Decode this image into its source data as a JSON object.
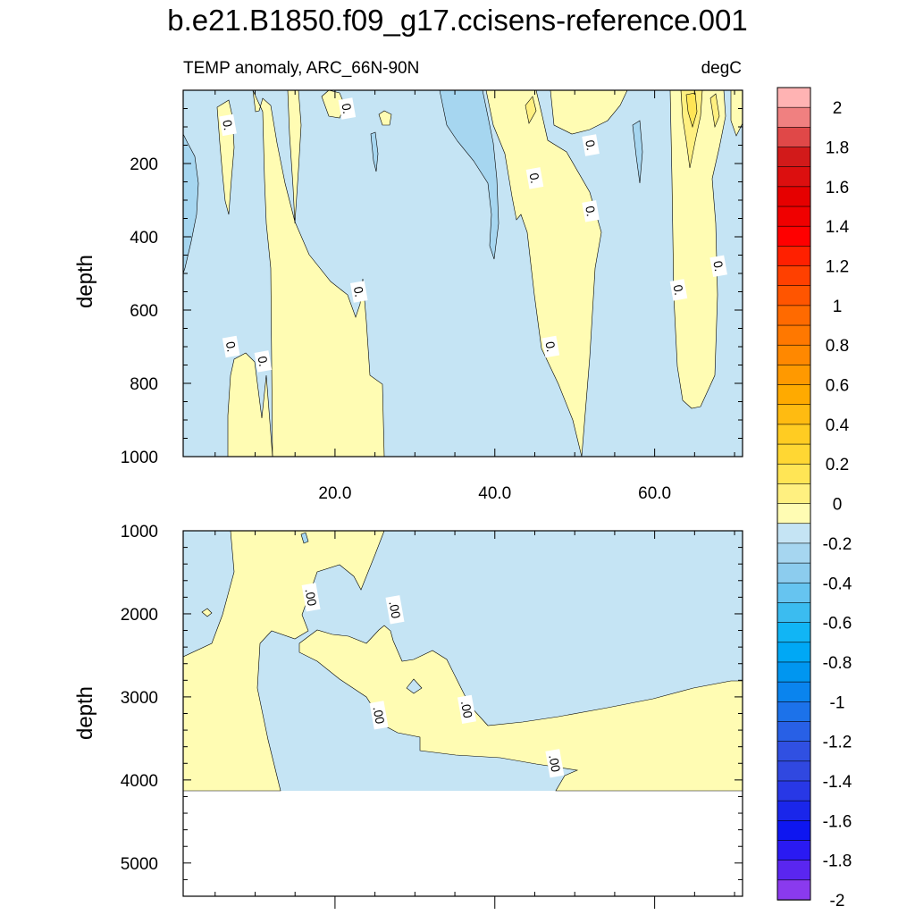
{
  "title": "b.e21.B1850.f09_g17.ccisens-reference.001",
  "chart_data": [
    {
      "type": "heatmap",
      "panel": "upper",
      "subtitle_left": "TEMP anomaly, ARC_66N-90N",
      "subtitle_right": "degC",
      "ylabel": "depth",
      "y_reversed": true,
      "xlim": [
        1,
        71
      ],
      "ylim": [
        0,
        1000
      ],
      "x_ticks": [
        20,
        40,
        60
      ],
      "x_tick_labels": [
        "20.0",
        "40.0",
        "60.0"
      ],
      "y_ticks": [
        200,
        400,
        600,
        800,
        1000
      ],
      "y_tick_labels": [
        "200",
        "400",
        "600",
        "800",
        "1000"
      ],
      "contour_labels": [
        {
          "text": "0.",
          "x": 6.6,
          "y": 95
        },
        {
          "text": "0.",
          "x": 21.5,
          "y": 50
        },
        {
          "text": "0.",
          "x": 23.0,
          "y": 550
        },
        {
          "text": "0.",
          "x": 7.0,
          "y": 700
        },
        {
          "text": "0.",
          "x": 11.0,
          "y": 740
        },
        {
          "text": "0.",
          "x": 45.0,
          "y": 240
        },
        {
          "text": "0.",
          "x": 52.0,
          "y": 330
        },
        {
          "text": "0.",
          "x": 52.0,
          "y": 150
        },
        {
          "text": "0.",
          "x": 47.0,
          "y": 700
        },
        {
          "text": "0.",
          "x": 63.0,
          "y": 545
        },
        {
          "text": "0.",
          "x": 68.0,
          "y": 480
        }
      ]
    },
    {
      "type": "heatmap",
      "panel": "lower",
      "ylabel": "depth",
      "y_reversed": true,
      "xlim": [
        1,
        71
      ],
      "ylim": [
        1000,
        5400
      ],
      "y_ticks": [
        1000,
        2000,
        3000,
        4000,
        5000
      ],
      "y_tick_labels": [
        "1000",
        "2000",
        "3000",
        "4000",
        "5000"
      ],
      "contour_labels": [
        {
          "text": ".00",
          "x": 17.0,
          "y": 1800
        },
        {
          "text": ".00",
          "x": 27.5,
          "y": 1950
        },
        {
          "text": ".00",
          "x": 25.5,
          "y": 3220
        },
        {
          "text": ".00",
          "x": 36.5,
          "y": 3150
        },
        {
          "text": ".00",
          "x": 47.5,
          "y": 3800
        }
      ]
    }
  ],
  "colorbar": {
    "labels": [
      "2",
      "1.8",
      "1.6",
      "1.4",
      "1.2",
      "1",
      "0.8",
      "0.6",
      "0.4",
      "0.2",
      "0",
      "-0.2",
      "-0.4",
      "-0.6",
      "-0.8",
      "-1",
      "-1.2",
      "-1.4",
      "-1.6",
      "-1.8",
      "-2"
    ],
    "colors": [
      "#FFB3B3",
      "#F08080",
      "#E04848",
      "#D21A1A",
      "#DC0F0F",
      "#E60000",
      "#F00000",
      "#FF0000",
      "#FF2000",
      "#FF4000",
      "#FF5500",
      "#FF6A00",
      "#FF7800",
      "#FF8800",
      "#FF9900",
      "#FFAA00",
      "#FFBB11",
      "#FFCC22",
      "#FFD733",
      "#FFE555",
      "#FFF080",
      "#FFFCB3",
      "#C5E4F4",
      "#A6D6F0",
      "#8CCCEE",
      "#66C4F0",
      "#3BBCF0",
      "#11B5F5",
      "#00A8F5",
      "#0096F0",
      "#0A84EE",
      "#1C72EA",
      "#2860E6",
      "#3050E2",
      "#3048E0",
      "#2838E6",
      "#1A26EA",
      "#0E16F0",
      "#2A1AF2",
      "#5A26F0",
      "#8A3AEE"
    ]
  }
}
